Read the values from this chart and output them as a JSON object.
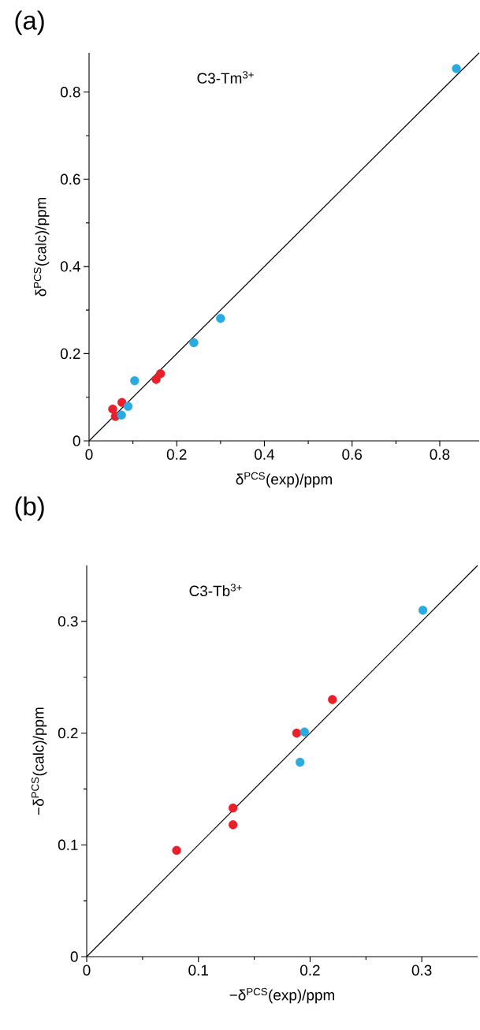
{
  "chart_data": [
    {
      "type": "scatter",
      "title": "C3-Tm$^{3+}$",
      "xlabel": "δ$^{PCS}$(exp)/ppm",
      "ylabel": "δ$^{PCS}$(calc)/ppm",
      "annotations": [
        "(a)"
      ],
      "xlim": [
        0,
        0.89
      ],
      "ylim": [
        0,
        0.89
      ],
      "xticks": [
        0,
        {
          "value": 0.1,
          "label": null
        },
        0.2,
        {
          "value": 0.3,
          "label": null
        },
        0.4,
        {
          "value": 0.5,
          "label": null
        },
        0.6,
        {
          "value": 0.7,
          "label": null
        },
        0.8
      ],
      "yticks": [
        0,
        {
          "value": 0.1,
          "label": null
        },
        0.2,
        {
          "value": 0.3,
          "label": null
        },
        0.4,
        {
          "value": 0.5,
          "label": null
        },
        0.6,
        {
          "value": 0.7,
          "label": null
        },
        0.8
      ],
      "marker": "circle",
      "grid": false,
      "series": [
        {
          "type": "line",
          "color": "#000000",
          "marker": "none",
          "line_style": "solid",
          "x": [
            0,
            0.89
          ],
          "values": [
            0,
            0.89
          ]
        },
        {
          "color": "#e8202a",
          "x": [
            0.054,
            0.06,
            0.075,
            0.153,
            0.163
          ],
          "values": [
            0.073,
            0.056,
            0.088,
            0.141,
            0.154
          ]
        },
        {
          "color": "#29abe2",
          "x": [
            0.074,
            0.089,
            0.104,
            0.239,
            0.3,
            0.838
          ],
          "values": [
            0.059,
            0.079,
            0.138,
            0.225,
            0.281,
            0.854
          ]
        }
      ]
    },
    {
      "type": "scatter",
      "title": "C3-Tb$^{3+}$",
      "xlabel": "−δ$^{PCS}$(exp)/ppm",
      "ylabel": "−δ$^{PCS}$(calc)/ppm",
      "annotations": [
        "(b)"
      ],
      "xlim": [
        0,
        0.35
      ],
      "ylim": [
        0,
        0.35
      ],
      "xticks": [
        0,
        {
          "value": 0.05,
          "label": null
        },
        0.1,
        {
          "value": 0.15,
          "label": null
        },
        0.2,
        {
          "value": 0.25,
          "label": null
        },
        0.3
      ],
      "yticks": [
        0,
        {
          "value": 0.05,
          "label": null
        },
        0.1,
        {
          "value": 0.15,
          "label": null
        },
        0.2,
        {
          "value": 0.25,
          "label": null
        },
        0.3
      ],
      "marker": "circle",
      "grid": false,
      "series": [
        {
          "type": "line",
          "color": "#000000",
          "marker": "none",
          "line_style": "solid",
          "x": [
            0,
            0.35
          ],
          "values": [
            0,
            0.35
          ]
        },
        {
          "color": "#e8202a",
          "x": [
            0.0805,
            0.131,
            0.131,
            0.188,
            0.22
          ],
          "values": [
            0.095,
            0.133,
            0.118,
            0.2,
            0.23
          ]
        },
        {
          "color": "#29abe2",
          "x": [
            0.191,
            0.195,
            0.301
          ],
          "values": [
            0.174,
            0.201,
            0.31
          ]
        }
      ]
    }
  ]
}
